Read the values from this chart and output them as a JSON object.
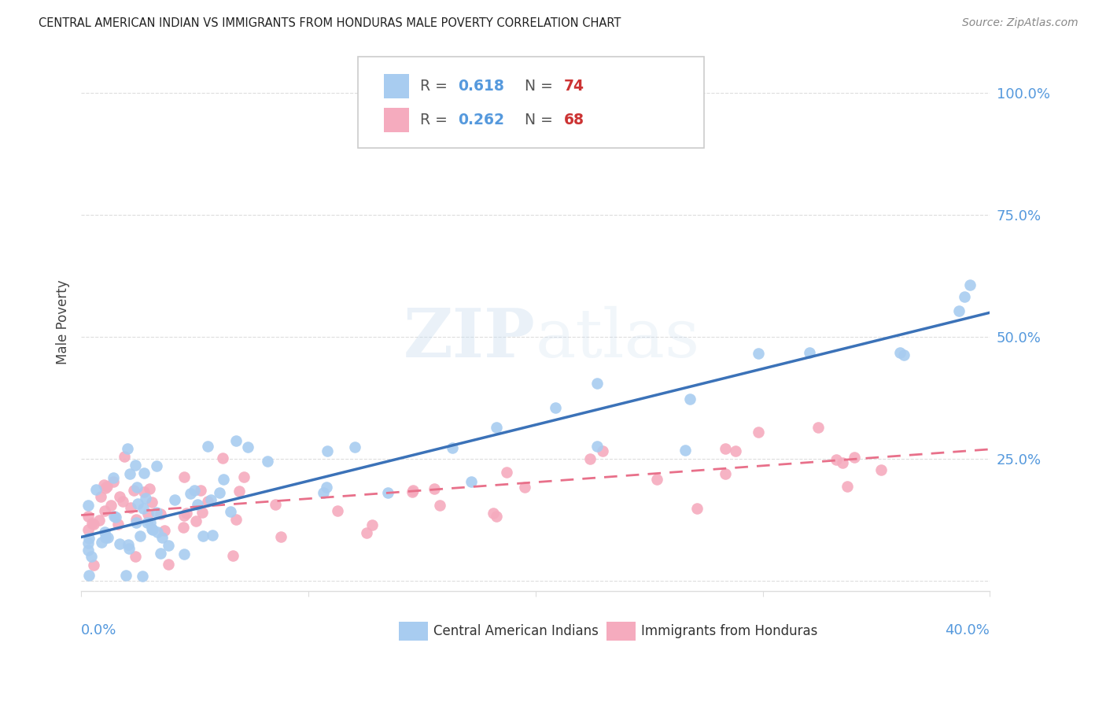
{
  "title": "CENTRAL AMERICAN INDIAN VS IMMIGRANTS FROM HONDURAS MALE POVERTY CORRELATION CHART",
  "source": "Source: ZipAtlas.com",
  "ylabel": "Male Poverty",
  "xlim": [
    0.0,
    0.4
  ],
  "ylim": [
    -0.02,
    1.08
  ],
  "y_ticks": [
    0.0,
    0.25,
    0.5,
    0.75,
    1.0
  ],
  "y_tick_labels": [
    "",
    "25.0%",
    "50.0%",
    "75.0%",
    "100.0%"
  ],
  "legend_r1": "0.618",
  "legend_n1": "74",
  "legend_r2": "0.262",
  "legend_n2": "68",
  "legend_label1": "Central American Indians",
  "legend_label2": "Immigrants from Honduras",
  "blue_color": "#A8CCF0",
  "pink_color": "#F5ABBE",
  "blue_line_color": "#3B72B8",
  "pink_line_color": "#E8708A",
  "tick_color": "#5599DD",
  "background_color": "#FFFFFF",
  "grid_color": "#DDDDDD",
  "blue_line_x": [
    0.0,
    0.4
  ],
  "blue_line_y": [
    0.09,
    0.55
  ],
  "pink_line_x": [
    0.0,
    0.4
  ],
  "pink_line_y": [
    0.135,
    0.27
  ]
}
